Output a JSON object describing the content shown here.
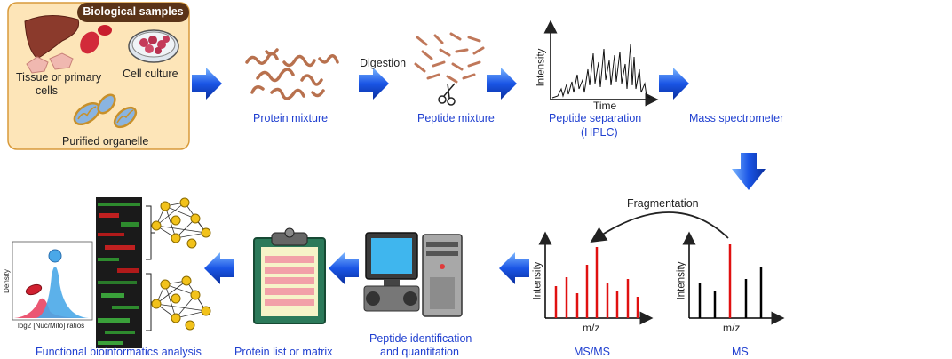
{
  "samples": {
    "title": "Biological samples",
    "tissue": "Tissue or primary cells",
    "tissue_line1": "Tissue or primary",
    "tissue_line2": "cells",
    "culture": "Cell culture",
    "organelle": "Purified organelle"
  },
  "steps": {
    "protein_mixture": "Protein mixture",
    "digestion": "Digestion",
    "peptide_mixture": "Peptide mixture",
    "hplc_line1": "Peptide separation",
    "hplc_line2": "(HPLC)",
    "mass_spec": "Mass spectrometer",
    "fragmentation": "Fragmentation",
    "msms": "MS/MS",
    "ms": "MS",
    "pep_id_line1": "Peptide identification",
    "pep_id_line2": "and quantitation",
    "protein_list": "Protein list or matrix",
    "bioinfo": "Functional bioinformatics analysis"
  },
  "axes": {
    "intensity": "Intensity",
    "time": "Time",
    "mz": "m/z",
    "density": "Density",
    "ratio": "log2 [Nuc/Mito] ratios"
  },
  "colors": {
    "arrow": "#1a55e6",
    "label_blue": "#1f3fd0",
    "peak_red": "#e01010",
    "box_fill": "#fde5b8",
    "box_border": "#d89a3a"
  }
}
